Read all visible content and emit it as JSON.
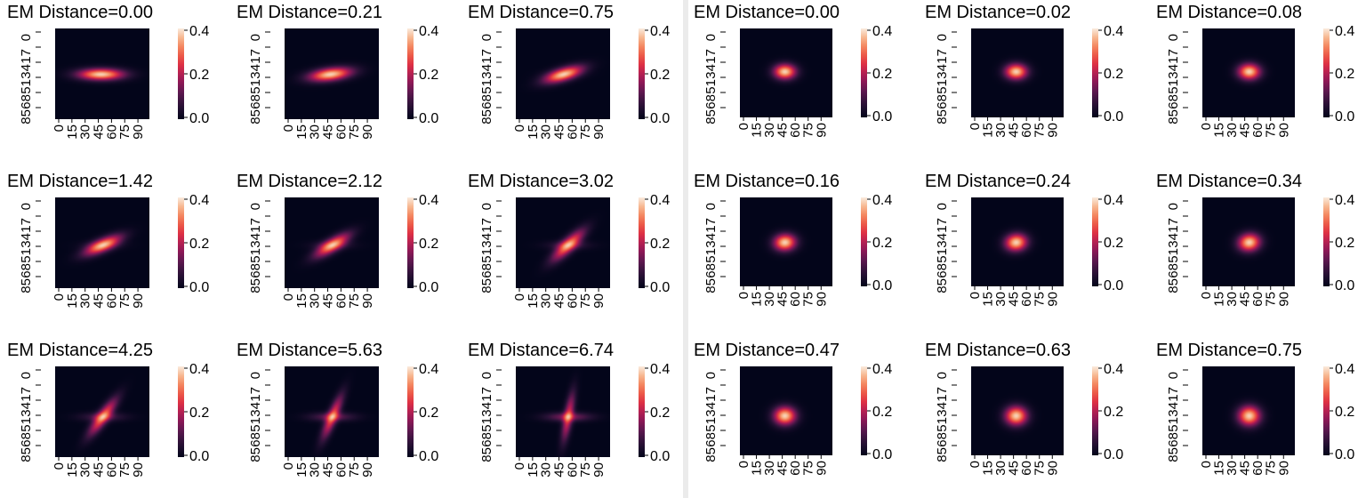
{
  "chart_data": [
    {
      "type": "heatmap",
      "panel": "left",
      "x_tick_labels": [
        "0",
        "15",
        "30",
        "45",
        "60",
        "75",
        "90"
      ],
      "y_tick_labels": [
        "0",
        "17",
        "34",
        "51",
        "68",
        "85"
      ],
      "colorbar": {
        "ticks": [
          "0.0",
          "0.2",
          "0.4"
        ],
        "range": [
          0,
          0.4
        ],
        "colormap": "rocket"
      },
      "subplots": [
        {
          "title": "EM Distance=0.00",
          "em_distance": 0.0,
          "sigma_x": 0.17,
          "sigma_y": 0.045,
          "rotation_deg": 0,
          "cross": 0,
          "center": [
            0.48,
            0.5
          ]
        },
        {
          "title": "EM Distance=0.21",
          "em_distance": 0.21,
          "sigma_x": 0.16,
          "sigma_y": 0.05,
          "rotation_deg": -8,
          "cross": 0.05,
          "center": [
            0.48,
            0.5
          ]
        },
        {
          "title": "EM Distance=0.75",
          "em_distance": 0.75,
          "sigma_x": 0.15,
          "sigma_y": 0.05,
          "rotation_deg": -18,
          "cross": 0.1,
          "center": [
            0.5,
            0.5
          ]
        },
        {
          "title": "EM Distance=1.42",
          "em_distance": 1.42,
          "sigma_x": 0.15,
          "sigma_y": 0.05,
          "rotation_deg": -25,
          "cross": 0.2,
          "center": [
            0.5,
            0.52
          ]
        },
        {
          "title": "EM Distance=2.12",
          "em_distance": 2.12,
          "sigma_x": 0.15,
          "sigma_y": 0.05,
          "rotation_deg": -33,
          "cross": 0.3,
          "center": [
            0.5,
            0.52
          ]
        },
        {
          "title": "EM Distance=3.02",
          "em_distance": 3.02,
          "sigma_x": 0.16,
          "sigma_y": 0.05,
          "rotation_deg": -45,
          "cross": 0.4,
          "center": [
            0.55,
            0.52
          ]
        },
        {
          "title": "EM Distance=4.25",
          "em_distance": 4.25,
          "sigma_x": 0.17,
          "sigma_y": 0.045,
          "rotation_deg": -55,
          "cross": 0.55,
          "center": [
            0.5,
            0.55
          ]
        },
        {
          "title": "EM Distance=5.63",
          "em_distance": 5.63,
          "sigma_x": 0.18,
          "sigma_y": 0.04,
          "rotation_deg": -68,
          "cross": 0.7,
          "center": [
            0.5,
            0.55
          ]
        },
        {
          "title": "EM Distance=6.74",
          "em_distance": 6.74,
          "sigma_x": 0.19,
          "sigma_y": 0.035,
          "rotation_deg": -80,
          "cross": 0.85,
          "center": [
            0.55,
            0.55
          ]
        }
      ]
    },
    {
      "type": "heatmap",
      "panel": "right",
      "x_tick_labels": [
        "0",
        "15",
        "30",
        "45",
        "60",
        "75",
        "90"
      ],
      "y_tick_labels": [
        "0",
        "17",
        "34",
        "51",
        "68",
        "85"
      ],
      "colorbar": {
        "ticks": [
          "0.0",
          "0.2",
          "0.4"
        ],
        "range": [
          0,
          0.4
        ],
        "colormap": "rocket"
      },
      "subplots": [
        {
          "title": "EM Distance=0.00",
          "em_distance": 0.0,
          "sigma_x": 0.085,
          "sigma_y": 0.06,
          "rotation_deg": 0,
          "cross": 0,
          "center": [
            0.48,
            0.48
          ]
        },
        {
          "title": "EM Distance=0.02",
          "em_distance": 0.02,
          "sigma_x": 0.085,
          "sigma_y": 0.062,
          "rotation_deg": 0,
          "cross": 0,
          "center": [
            0.48,
            0.48
          ]
        },
        {
          "title": "EM Distance=0.08",
          "em_distance": 0.08,
          "sigma_x": 0.085,
          "sigma_y": 0.064,
          "rotation_deg": 0,
          "cross": 0,
          "center": [
            0.5,
            0.48
          ]
        },
        {
          "title": "EM Distance=0.16",
          "em_distance": 0.16,
          "sigma_x": 0.085,
          "sigma_y": 0.066,
          "rotation_deg": -5,
          "cross": 0,
          "center": [
            0.48,
            0.5
          ]
        },
        {
          "title": "EM Distance=0.24",
          "em_distance": 0.24,
          "sigma_x": 0.085,
          "sigma_y": 0.068,
          "rotation_deg": -8,
          "cross": 0,
          "center": [
            0.48,
            0.5
          ]
        },
        {
          "title": "EM Distance=0.34",
          "em_distance": 0.34,
          "sigma_x": 0.085,
          "sigma_y": 0.07,
          "rotation_deg": -10,
          "cross": 0,
          "center": [
            0.5,
            0.5
          ]
        },
        {
          "title": "EM Distance=0.47",
          "em_distance": 0.47,
          "sigma_x": 0.085,
          "sigma_y": 0.072,
          "rotation_deg": 0,
          "cross": 0,
          "center": [
            0.48,
            0.55
          ]
        },
        {
          "title": "EM Distance=0.63",
          "em_distance": 0.63,
          "sigma_x": 0.085,
          "sigma_y": 0.075,
          "rotation_deg": 0,
          "cross": 0,
          "center": [
            0.48,
            0.55
          ]
        },
        {
          "title": "EM Distance=0.75",
          "em_distance": 0.75,
          "sigma_x": 0.085,
          "sigma_y": 0.078,
          "rotation_deg": 0,
          "cross": 0,
          "center": [
            0.5,
            0.55
          ]
        }
      ]
    }
  ]
}
